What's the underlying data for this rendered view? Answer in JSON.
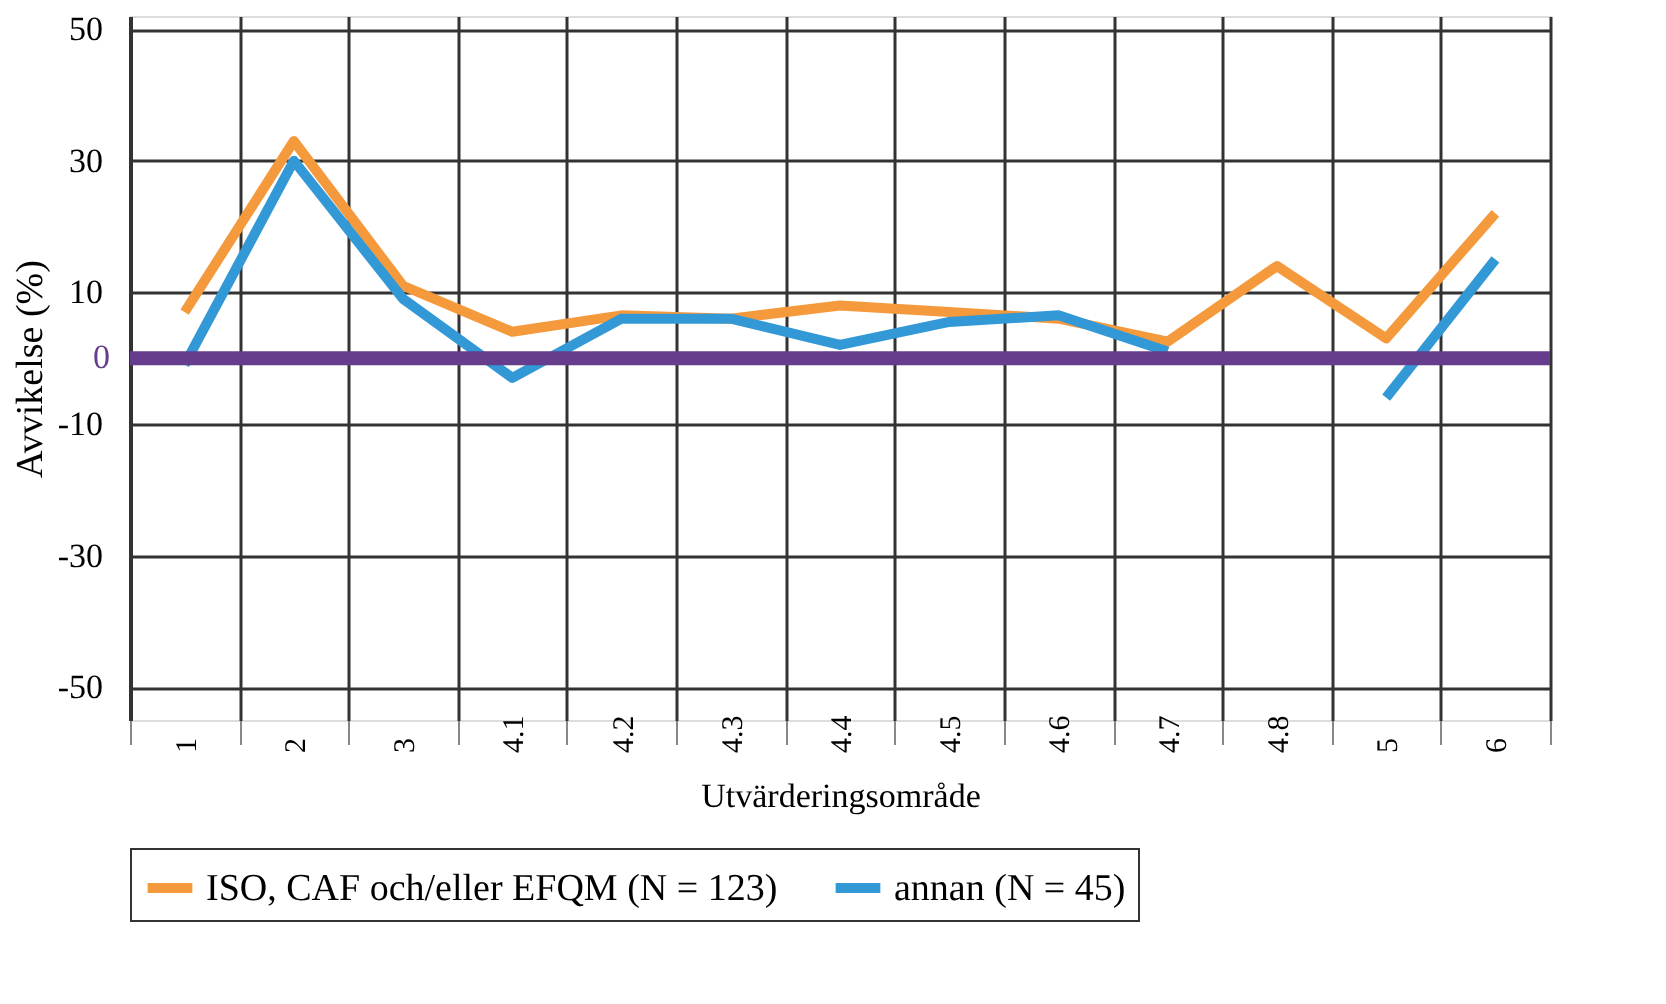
{
  "chart_data": {
    "type": "line",
    "xlabel": "Utvärderingsområde",
    "ylabel": "Avvikelse (%)",
    "categories": [
      "1",
      "2",
      "3",
      "4.1",
      "4.2",
      "4.3",
      "4.4",
      "4.5",
      "4.6",
      "4.7",
      "4.8",
      "5",
      "6"
    ],
    "series": [
      {
        "name": "ISO, CAF och/eller EFQM (N = 123)",
        "color": "#f59a3c",
        "values": [
          7,
          33,
          11,
          4,
          6.5,
          6,
          8,
          7,
          6,
          2.5,
          14,
          3,
          22
        ]
      },
      {
        "name": "annan (N = 45)",
        "color": "#3399d6",
        "values": [
          -1,
          30,
          9,
          -3,
          6,
          6,
          2,
          5.5,
          6.5,
          1,
          null,
          -6,
          15
        ]
      }
    ],
    "ylim": [
      -55,
      52
    ],
    "yticks": [
      -50,
      -30,
      -10,
      10,
      30,
      50
    ],
    "ref_lines": [
      {
        "axis": "y",
        "value": 0,
        "label": "0",
        "color": "#663d8c"
      }
    ],
    "grid": true,
    "legend": "bottom",
    "marker": "none",
    "line_style": "solid"
  }
}
